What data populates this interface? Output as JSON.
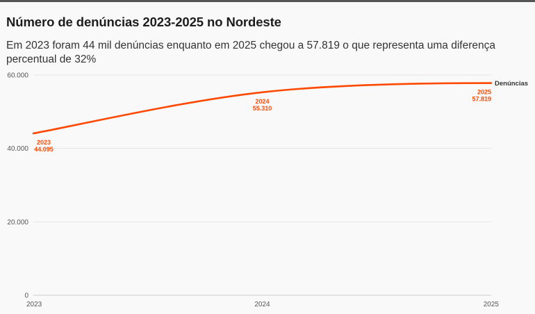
{
  "header": {
    "title": "Número de denúncias 2023-2025 no Nordeste",
    "subtitle": "Em 2023 foram 44 mil denúncias enquanto em 2025 chegou a 57.819 o que representa uma diferença percentual de 32%"
  },
  "colors": {
    "line": "#ff4800",
    "grid": "#e6e6e6",
    "axis": "#cfcfcf"
  },
  "chart_data": {
    "type": "line",
    "title": "Número de denúncias 2023-2025 no Nordeste",
    "x": [
      2023,
      2024,
      2025
    ],
    "x_tick_labels": [
      "2023",
      "2024",
      "2025"
    ],
    "y_tick_labels": [
      "0",
      "20.000",
      "40.000",
      "60.000"
    ],
    "y_ticks": [
      0,
      20000,
      40000,
      60000
    ],
    "ylim": [
      0,
      60000
    ],
    "xlabel": "",
    "ylabel": "",
    "grid": true,
    "series": [
      {
        "name": "Denúncias",
        "values": [
          44095,
          55310,
          57819
        ],
        "data_labels": [
          {
            "year": "2023",
            "value": "44.095"
          },
          {
            "year": "2024",
            "value": "55.310"
          },
          {
            "year": "2025",
            "value": "57.819"
          }
        ]
      }
    ]
  }
}
